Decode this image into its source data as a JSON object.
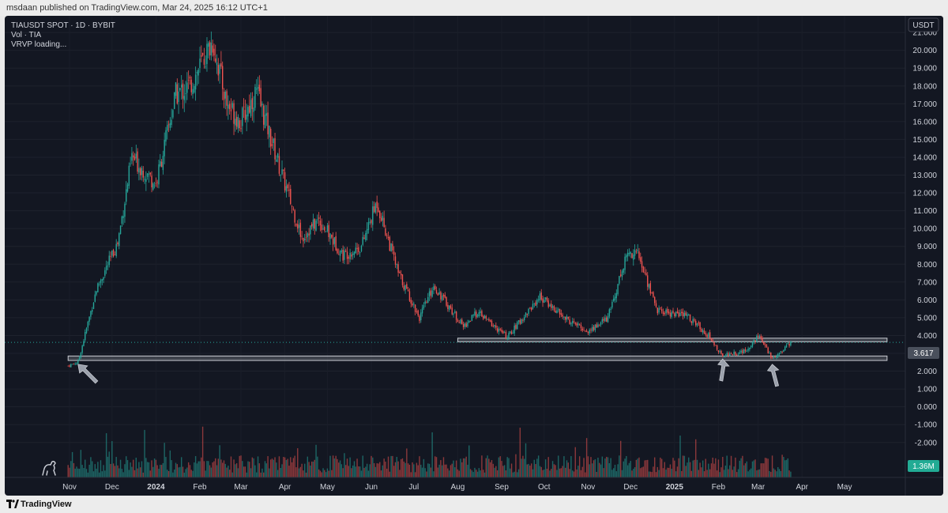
{
  "header": {
    "published": "msdaan published on TradingView.com, Mar 24, 2025 16:12 UTC+1"
  },
  "footer": {
    "brand": "TradingView"
  },
  "legend": {
    "symbol": "TIAUSDT SPOT · 1D · BYBIT",
    "volume": "Vol · TIA",
    "vrvp": "VRVP loading..."
  },
  "price_axis": {
    "currency": "USDT",
    "last_price": "3.617",
    "last_volume": "1.36M"
  },
  "colors": {
    "up": "#26a69a",
    "down": "#ef5350",
    "background": "#131722",
    "axis_text": "#d1d4dc",
    "zone": "#8e929b"
  },
  "chart_data": {
    "type": "candlestick",
    "title": "TIAUSDT SPOT · 1D · BYBIT",
    "y_ticks": [
      "21.000",
      "20.000",
      "19.000",
      "18.000",
      "17.000",
      "16.000",
      "15.000",
      "14.000",
      "13.000",
      "12.000",
      "11.000",
      "10.000",
      "9.000",
      "8.000",
      "7.000",
      "6.000",
      "5.000",
      "4.000",
      "3.000",
      "2.000",
      "1.000",
      "0.000",
      "-1.000",
      "-2.000"
    ],
    "x_ticks": [
      "Nov",
      "Dec",
      "2024",
      "Feb",
      "Mar",
      "Apr",
      "May",
      "Jun",
      "Jul",
      "Aug",
      "Sep",
      "Oct",
      "Nov",
      "Dec",
      "2025",
      "Feb",
      "Mar",
      "Apr",
      "May"
    ],
    "bold_x_ticks": [
      "2024",
      "2025"
    ],
    "last_price": 3.617,
    "support_zones": [
      {
        "name": "",
        "low": 2.6,
        "high": 2.85,
        "from": "2023-10-31",
        "to": "2025-05-31"
      },
      {
        "name": "",
        "low": 3.65,
        "high": 3.85,
        "from": "2024-08-01",
        "to": "2025-05-31"
      }
    ],
    "key_points": [
      {
        "date": "2023-10-31",
        "price": 2.3
      },
      {
        "date": "2023-11-07",
        "price": 2.5
      },
      {
        "date": "2023-11-20",
        "price": 6.6
      },
      {
        "date": "2023-12-05",
        "price": 9.2
      },
      {
        "date": "2023-12-15",
        "price": 14.0
      },
      {
        "date": "2024-01-01",
        "price": 12.5
      },
      {
        "date": "2024-01-15",
        "price": 17.5
      },
      {
        "date": "2024-01-25",
        "price": 18.0
      },
      {
        "date": "2024-02-10",
        "price": 20.5
      },
      {
        "date": "2024-02-20",
        "price": 17.0
      },
      {
        "date": "2024-03-01",
        "price": 16.0
      },
      {
        "date": "2024-03-12",
        "price": 17.7
      },
      {
        "date": "2024-03-28",
        "price": 13.5
      },
      {
        "date": "2024-04-13",
        "price": 9.5
      },
      {
        "date": "2024-04-25",
        "price": 10.5
      },
      {
        "date": "2024-05-12",
        "price": 8.5
      },
      {
        "date": "2024-05-25",
        "price": 9.0
      },
      {
        "date": "2024-06-05",
        "price": 11.5
      },
      {
        "date": "2024-06-20",
        "price": 7.5
      },
      {
        "date": "2024-07-05",
        "price": 5.0
      },
      {
        "date": "2024-07-15",
        "price": 6.8
      },
      {
        "date": "2024-08-05",
        "price": 4.5
      },
      {
        "date": "2024-08-15",
        "price": 5.3
      },
      {
        "date": "2024-09-05",
        "price": 3.9
      },
      {
        "date": "2024-09-28",
        "price": 6.2
      },
      {
        "date": "2024-10-15",
        "price": 5.0
      },
      {
        "date": "2024-11-01",
        "price": 4.2
      },
      {
        "date": "2024-11-15",
        "price": 5.0
      },
      {
        "date": "2024-11-28",
        "price": 8.5
      },
      {
        "date": "2024-12-05",
        "price": 8.8
      },
      {
        "date": "2024-12-20",
        "price": 5.4
      },
      {
        "date": "2025-01-10",
        "price": 5.1
      },
      {
        "date": "2025-01-25",
        "price": 4.0
      },
      {
        "date": "2025-02-03",
        "price": 2.9
      },
      {
        "date": "2025-02-20",
        "price": 3.1
      },
      {
        "date": "2025-03-01",
        "price": 4.0
      },
      {
        "date": "2025-03-11",
        "price": 2.7
      },
      {
        "date": "2025-03-24",
        "price": 3.617
      }
    ],
    "annotations": [
      {
        "type": "arrow",
        "date": "2023-11-07",
        "price": 2.65
      },
      {
        "type": "arrow",
        "date": "2025-02-04",
        "price": 2.95
      },
      {
        "type": "arrow",
        "date": "2025-03-11",
        "price": 2.65
      }
    ]
  }
}
